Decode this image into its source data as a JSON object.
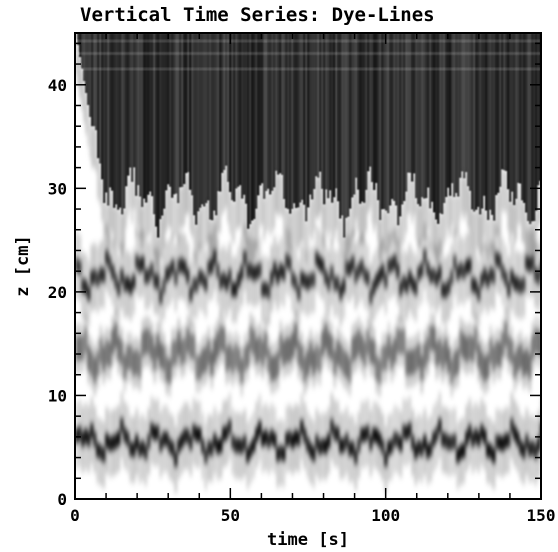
{
  "chart_data": {
    "type": "heatmap",
    "title": "Vertical Time Series: Dye-Lines",
    "xlabel": "time [s]",
    "ylabel": "z [cm]",
    "xlim": [
      0,
      150
    ],
    "ylim": [
      0,
      45
    ],
    "x_ticks": [
      0,
      50,
      100,
      150
    ],
    "x_tick_labels": [
      "0",
      "50",
      "100",
      "150"
    ],
    "y_ticks": [
      0,
      10,
      20,
      30,
      40
    ],
    "y_tick_labels": [
      "0",
      "10",
      "20",
      "30",
      "40"
    ],
    "colormap": "grayscale (white = low dye, black = high dye)",
    "grid": false,
    "legend": "none",
    "features": [
      {
        "name": "dye line",
        "mean_z": 5.5,
        "darkness": 0.95
      },
      {
        "name": "dye line",
        "mean_z": 14.0,
        "darkness": 0.45
      },
      {
        "name": "dye line",
        "mean_z": 21.5,
        "darkness": 0.85
      },
      {
        "name": "mixed layer (dark region)",
        "z_min": 30,
        "z_max": 45,
        "darkness": 0.9
      }
    ]
  }
}
